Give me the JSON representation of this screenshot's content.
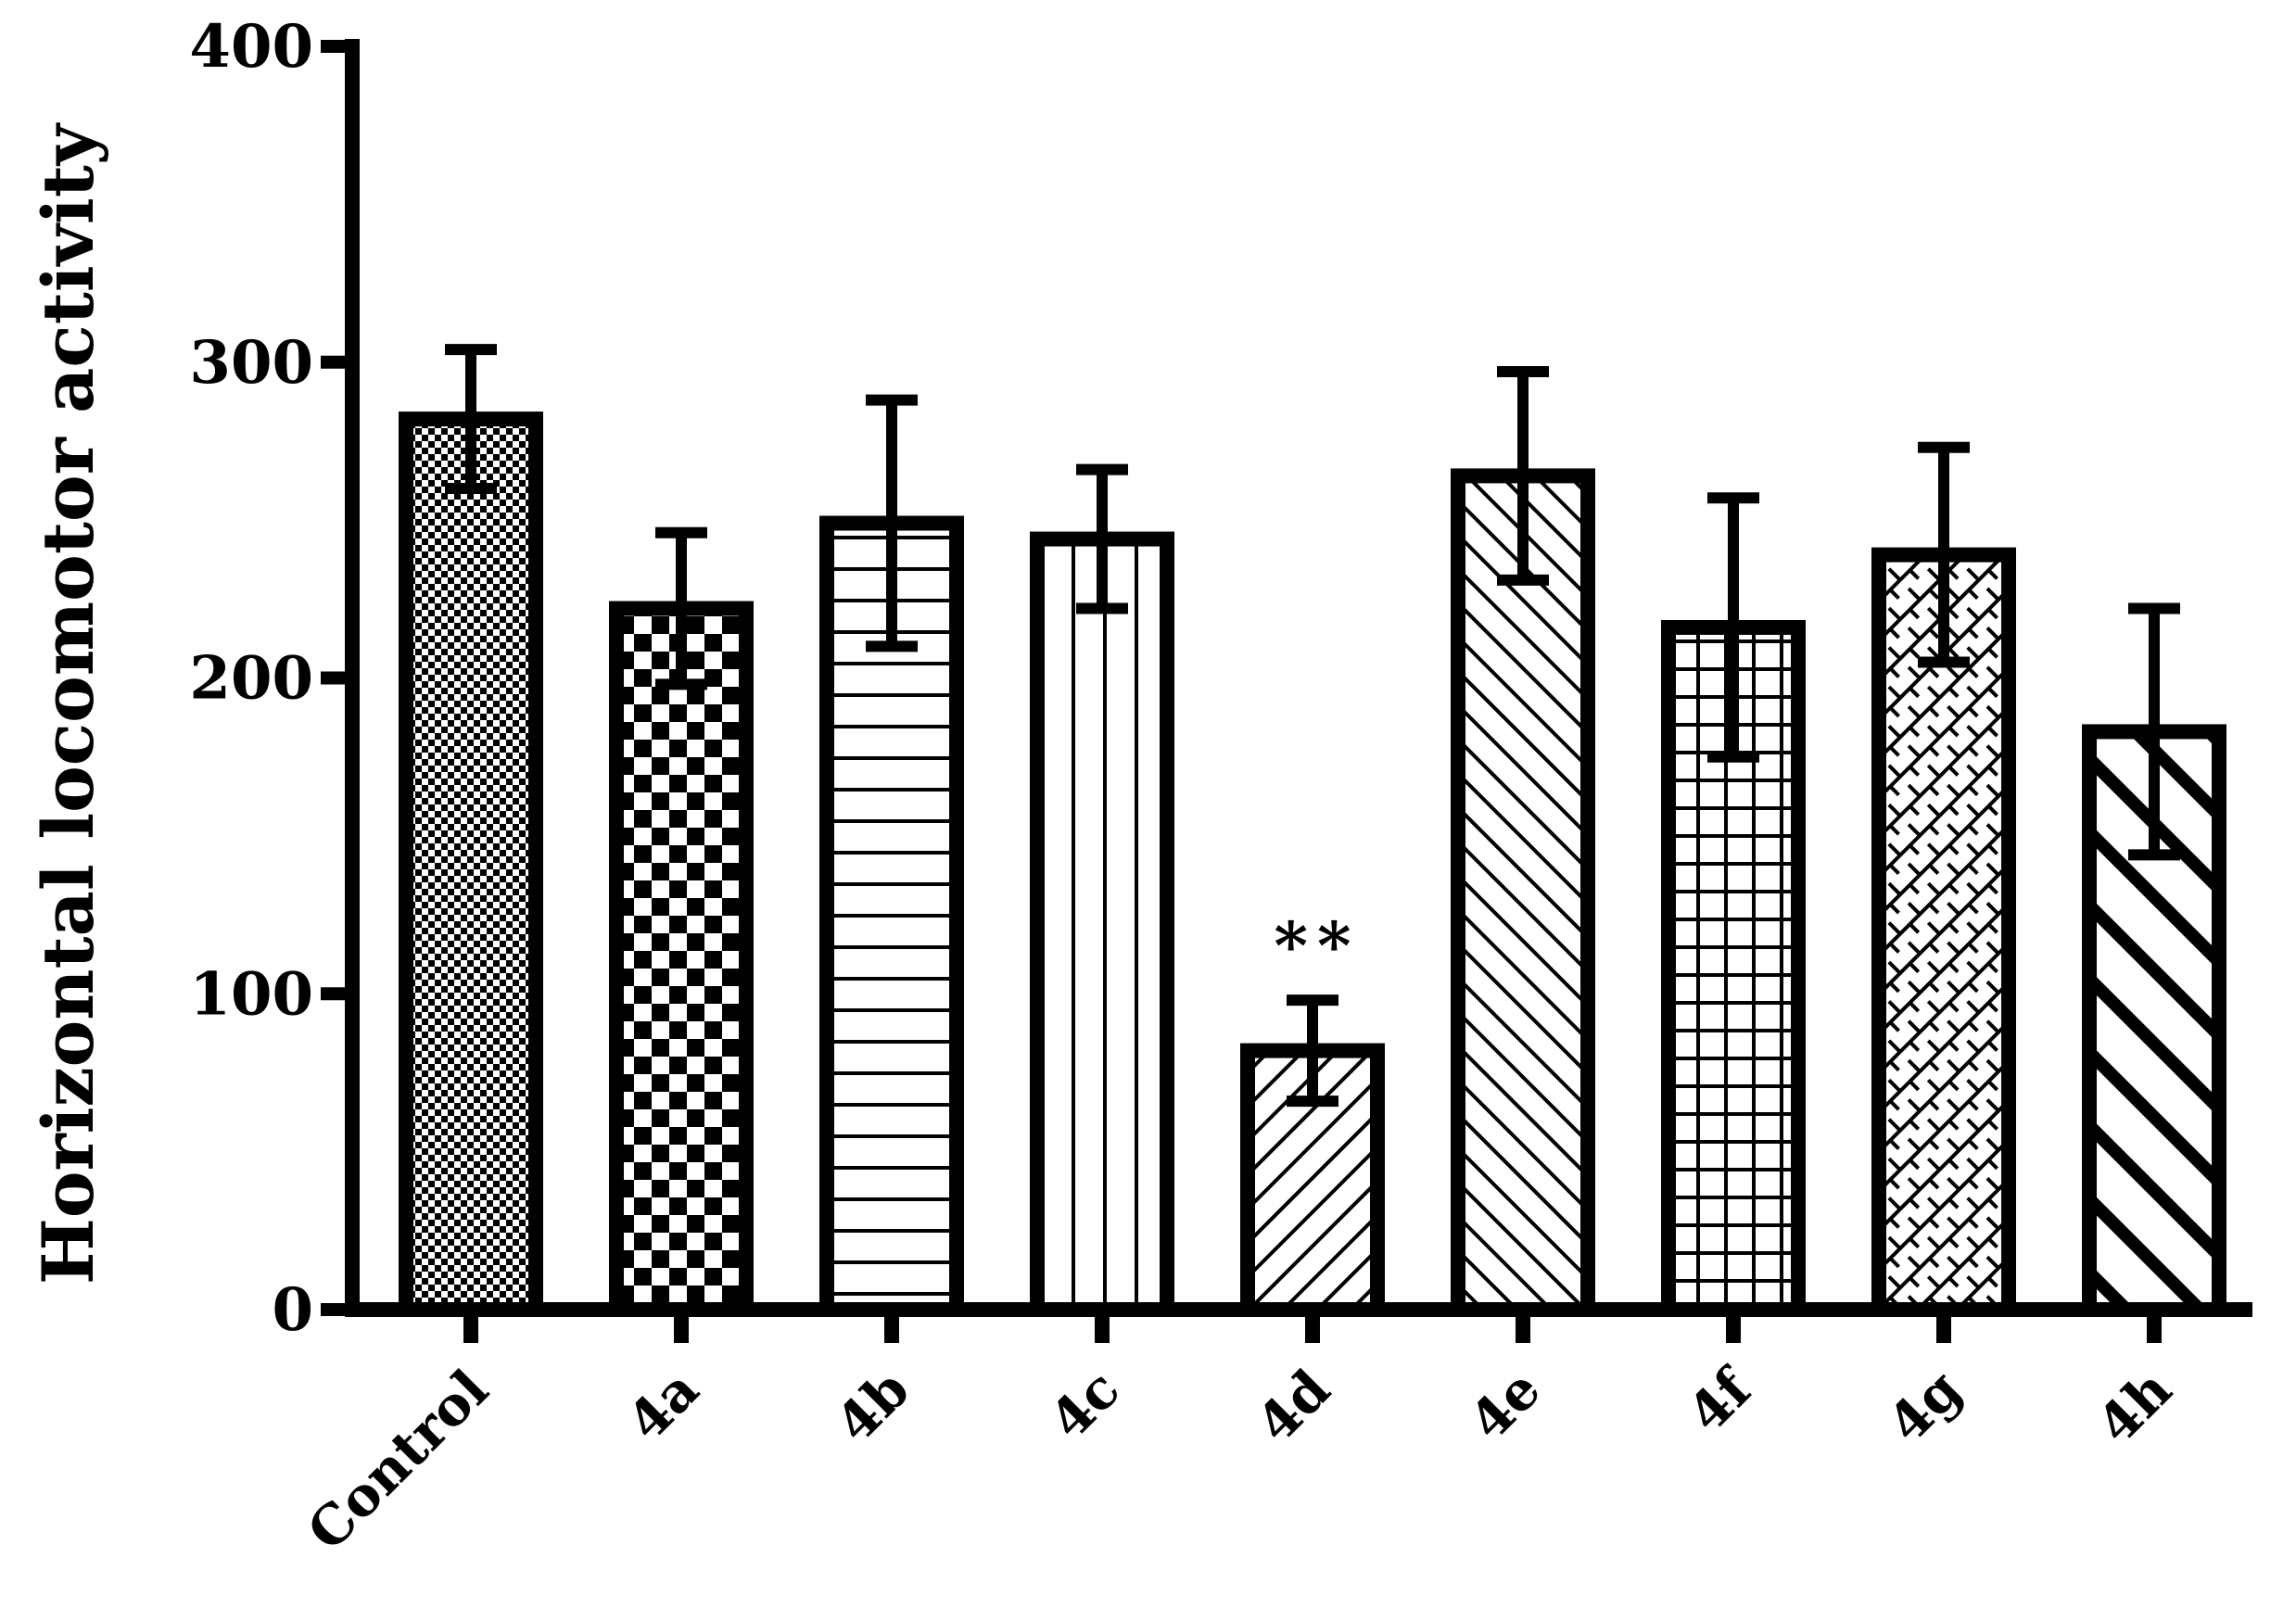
{
  "chart_data": {
    "type": "bar",
    "title": "",
    "xlabel": "",
    "ylabel": "Horizontal locomotor activity",
    "ylim": [
      0,
      400
    ],
    "yticks": [
      0,
      100,
      200,
      300,
      400
    ],
    "grid": false,
    "legend": "none",
    "categories": [
      "Control",
      "4a",
      "4b",
      "4c",
      "4d",
      "4e",
      "4f",
      "4g",
      "4h"
    ],
    "values": [
      282,
      222,
      249,
      244,
      82,
      264,
      216,
      239,
      183
    ],
    "errors": [
      22,
      24,
      39,
      22,
      16,
      33,
      41,
      34,
      39
    ],
    "patterns": [
      "fine-checker",
      "checker",
      "horizontal-lines",
      "vertical-lines",
      "diagonal-up",
      "diagonal-down",
      "grid",
      "diagonal-brick",
      "wide-diagonal-down"
    ],
    "annotations": [
      {
        "category": "4d",
        "text": "**"
      }
    ],
    "colors": {
      "ink": "#000000",
      "background": "#ffffff"
    }
  }
}
